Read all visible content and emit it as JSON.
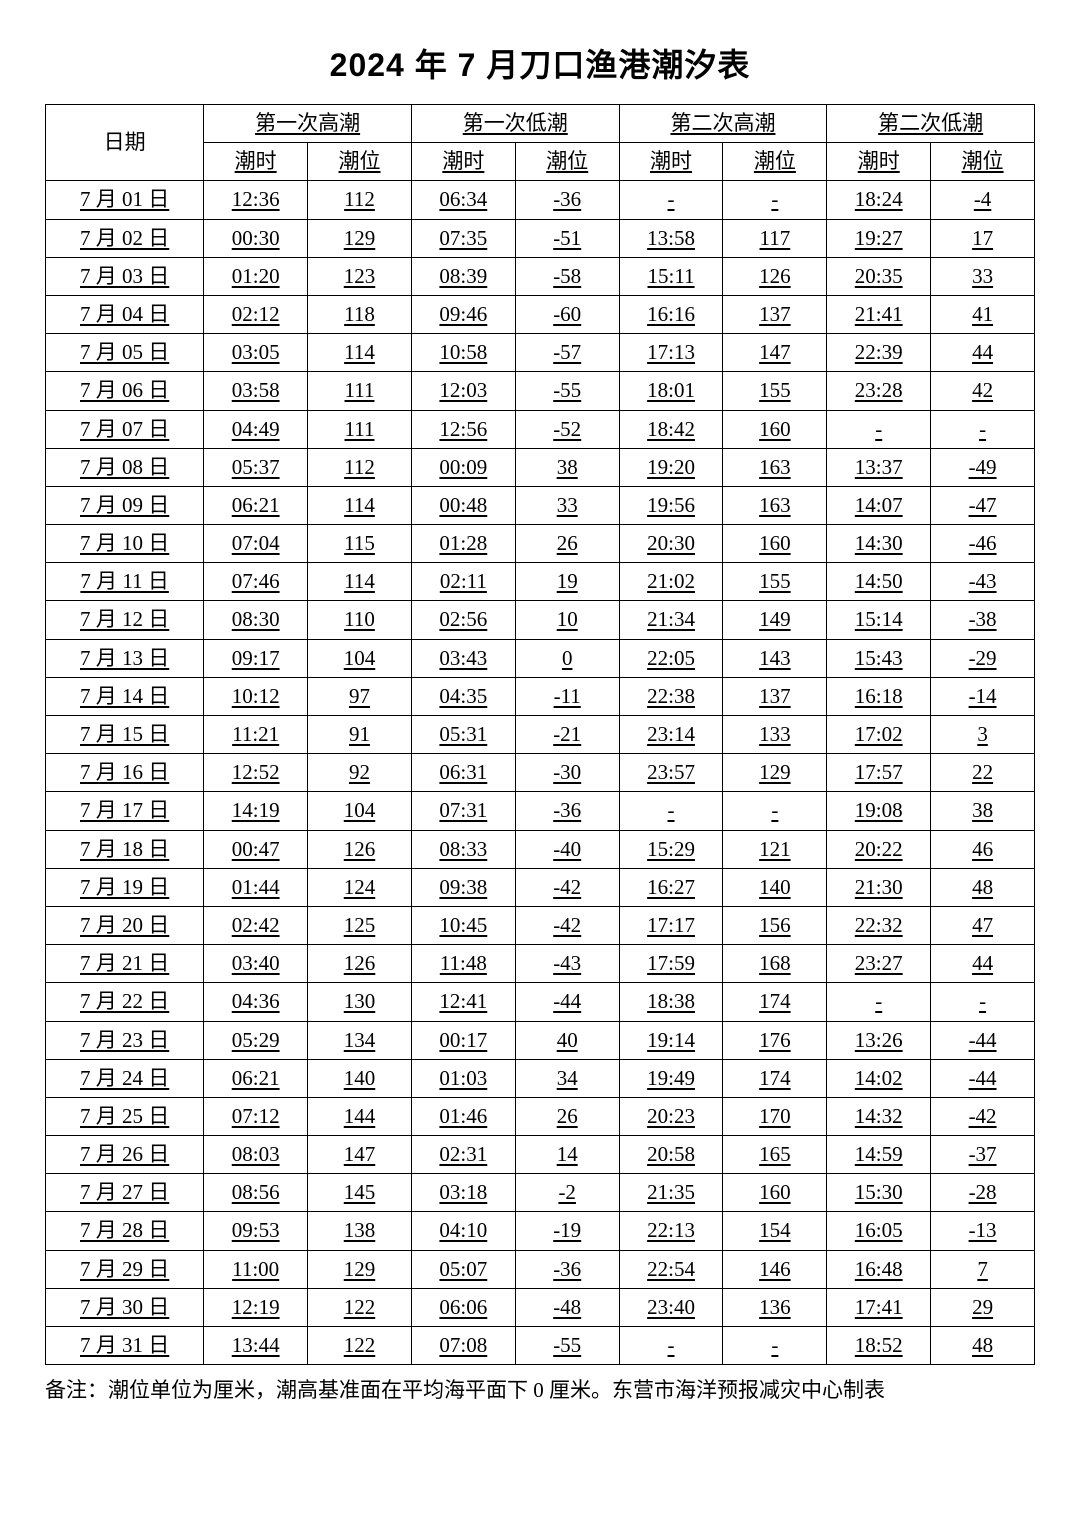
{
  "title": "2024 年 7 月刀口渔港潮汐表",
  "columns": {
    "date": "日期",
    "groups": [
      "第一次高潮",
      "第一次低潮",
      "第二次高潮",
      "第二次低潮"
    ],
    "sub_time": "潮时",
    "sub_level": "潮位"
  },
  "footnote": "备注：潮位单位为厘米，潮高基准面在平均海平面下 0 厘米。东营市海洋预报减灾中心制表",
  "rows": [
    {
      "date": "7 月 01 日",
      "h1t": "12:36",
      "h1l": "112",
      "l1t": "06:34",
      "l1l": "-36",
      "h2t": "-",
      "h2l": "-",
      "l2t": "18:24",
      "l2l": "-4"
    },
    {
      "date": "7 月 02 日",
      "h1t": "00:30",
      "h1l": "129",
      "l1t": "07:35",
      "l1l": "-51",
      "h2t": "13:58",
      "h2l": "117",
      "l2t": "19:27",
      "l2l": "17"
    },
    {
      "date": "7 月 03 日",
      "h1t": "01:20",
      "h1l": "123",
      "l1t": "08:39",
      "l1l": "-58",
      "h2t": "15:11",
      "h2l": "126",
      "l2t": "20:35",
      "l2l": "33"
    },
    {
      "date": "7 月 04 日",
      "h1t": "02:12",
      "h1l": "118",
      "l1t": "09:46",
      "l1l": "-60",
      "h2t": "16:16",
      "h2l": "137",
      "l2t": "21:41",
      "l2l": "41"
    },
    {
      "date": "7 月 05 日",
      "h1t": "03:05",
      "h1l": "114",
      "l1t": "10:58",
      "l1l": "-57",
      "h2t": "17:13",
      "h2l": "147",
      "l2t": "22:39",
      "l2l": "44"
    },
    {
      "date": "7 月 06 日",
      "h1t": "03:58",
      "h1l": "111",
      "l1t": "12:03",
      "l1l": "-55",
      "h2t": "18:01",
      "h2l": "155",
      "l2t": "23:28",
      "l2l": "42"
    },
    {
      "date": "7 月 07 日",
      "h1t": "04:49",
      "h1l": "111",
      "l1t": "12:56",
      "l1l": "-52",
      "h2t": "18:42",
      "h2l": "160",
      "l2t": "-",
      "l2l": "-"
    },
    {
      "date": "7 月 08 日",
      "h1t": "05:37",
      "h1l": "112",
      "l1t": "00:09",
      "l1l": "38",
      "h2t": "19:20",
      "h2l": "163",
      "l2t": "13:37",
      "l2l": "-49"
    },
    {
      "date": "7 月 09 日",
      "h1t": "06:21",
      "h1l": "114",
      "l1t": "00:48",
      "l1l": "33",
      "h2t": "19:56",
      "h2l": "163",
      "l2t": "14:07",
      "l2l": "-47"
    },
    {
      "date": "7 月 10 日",
      "h1t": "07:04",
      "h1l": "115",
      "l1t": "01:28",
      "l1l": "26",
      "h2t": "20:30",
      "h2l": "160",
      "l2t": "14:30",
      "l2l": "-46"
    },
    {
      "date": "7 月 11 日",
      "h1t": "07:46",
      "h1l": "114",
      "l1t": "02:11",
      "l1l": "19",
      "h2t": "21:02",
      "h2l": "155",
      "l2t": "14:50",
      "l2l": "-43"
    },
    {
      "date": "7 月 12 日",
      "h1t": "08:30",
      "h1l": "110",
      "l1t": "02:56",
      "l1l": "10",
      "h2t": "21:34",
      "h2l": "149",
      "l2t": "15:14",
      "l2l": "-38"
    },
    {
      "date": "7 月 13 日",
      "h1t": "09:17",
      "h1l": "104",
      "l1t": "03:43",
      "l1l": "0",
      "h2t": "22:05",
      "h2l": "143",
      "l2t": "15:43",
      "l2l": "-29"
    },
    {
      "date": "7 月 14 日",
      "h1t": "10:12",
      "h1l": "97",
      "l1t": "04:35",
      "l1l": "-11",
      "h2t": "22:38",
      "h2l": "137",
      "l2t": "16:18",
      "l2l": "-14"
    },
    {
      "date": "7 月 15 日",
      "h1t": "11:21",
      "h1l": "91",
      "l1t": "05:31",
      "l1l": "-21",
      "h2t": "23:14",
      "h2l": "133",
      "l2t": "17:02",
      "l2l": "3"
    },
    {
      "date": "7 月 16 日",
      "h1t": "12:52",
      "h1l": "92",
      "l1t": "06:31",
      "l1l": "-30",
      "h2t": "23:57",
      "h2l": "129",
      "l2t": "17:57",
      "l2l": "22"
    },
    {
      "date": "7 月 17 日",
      "h1t": "14:19",
      "h1l": "104",
      "l1t": "07:31",
      "l1l": "-36",
      "h2t": "-",
      "h2l": "-",
      "l2t": "19:08",
      "l2l": "38"
    },
    {
      "date": "7 月 18 日",
      "h1t": "00:47",
      "h1l": "126",
      "l1t": "08:33",
      "l1l": "-40",
      "h2t": "15:29",
      "h2l": "121",
      "l2t": "20:22",
      "l2l": "46"
    },
    {
      "date": "7 月 19 日",
      "h1t": "01:44",
      "h1l": "124",
      "l1t": "09:38",
      "l1l": "-42",
      "h2t": "16:27",
      "h2l": "140",
      "l2t": "21:30",
      "l2l": "48"
    },
    {
      "date": "7 月 20 日",
      "h1t": "02:42",
      "h1l": "125",
      "l1t": "10:45",
      "l1l": "-42",
      "h2t": "17:17",
      "h2l": "156",
      "l2t": "22:32",
      "l2l": "47"
    },
    {
      "date": "7 月 21 日",
      "h1t": "03:40",
      "h1l": "126",
      "l1t": "11:48",
      "l1l": "-43",
      "h2t": "17:59",
      "h2l": "168",
      "l2t": "23:27",
      "l2l": "44"
    },
    {
      "date": "7 月 22 日",
      "h1t": "04:36",
      "h1l": "130",
      "l1t": "12:41",
      "l1l": "-44",
      "h2t": "18:38",
      "h2l": "174",
      "l2t": "-",
      "l2l": "-"
    },
    {
      "date": "7 月 23 日",
      "h1t": "05:29",
      "h1l": "134",
      "l1t": "00:17",
      "l1l": "40",
      "h2t": "19:14",
      "h2l": "176",
      "l2t": "13:26",
      "l2l": "-44"
    },
    {
      "date": "7 月 24 日",
      "h1t": "06:21",
      "h1l": "140",
      "l1t": "01:03",
      "l1l": "34",
      "h2t": "19:49",
      "h2l": "174",
      "l2t": "14:02",
      "l2l": "-44"
    },
    {
      "date": "7 月 25 日",
      "h1t": "07:12",
      "h1l": "144",
      "l1t": "01:46",
      "l1l": "26",
      "h2t": "20:23",
      "h2l": "170",
      "l2t": "14:32",
      "l2l": "-42"
    },
    {
      "date": "7 月 26 日",
      "h1t": "08:03",
      "h1l": "147",
      "l1t": "02:31",
      "l1l": "14",
      "h2t": "20:58",
      "h2l": "165",
      "l2t": "14:59",
      "l2l": "-37"
    },
    {
      "date": "7 月 27 日",
      "h1t": "08:56",
      "h1l": "145",
      "l1t": "03:18",
      "l1l": "-2",
      "h2t": "21:35",
      "h2l": "160",
      "l2t": "15:30",
      "l2l": "-28"
    },
    {
      "date": "7 月 28 日",
      "h1t": "09:53",
      "h1l": "138",
      "l1t": "04:10",
      "l1l": "-19",
      "h2t": "22:13",
      "h2l": "154",
      "l2t": "16:05",
      "l2l": "-13"
    },
    {
      "date": "7 月 29 日",
      "h1t": "11:00",
      "h1l": "129",
      "l1t": "05:07",
      "l1l": "-36",
      "h2t": "22:54",
      "h2l": "146",
      "l2t": "16:48",
      "l2l": "7"
    },
    {
      "date": "7 月 30 日",
      "h1t": "12:19",
      "h1l": "122",
      "l1t": "06:06",
      "l1l": "-48",
      "h2t": "23:40",
      "h2l": "136",
      "l2t": "17:41",
      "l2l": "29"
    },
    {
      "date": "7 月 31 日",
      "h1t": "13:44",
      "h1l": "122",
      "l1t": "07:08",
      "l1l": "-55",
      "h2t": "-",
      "h2l": "-",
      "l2t": "18:52",
      "l2l": "48"
    }
  ],
  "style": {
    "background_color": "#ffffff",
    "text_color": "#000000",
    "border_color": "#000000",
    "title_fontsize": 32,
    "cell_fontsize": 21,
    "footnote_fontsize": 21,
    "underline_values": true
  }
}
